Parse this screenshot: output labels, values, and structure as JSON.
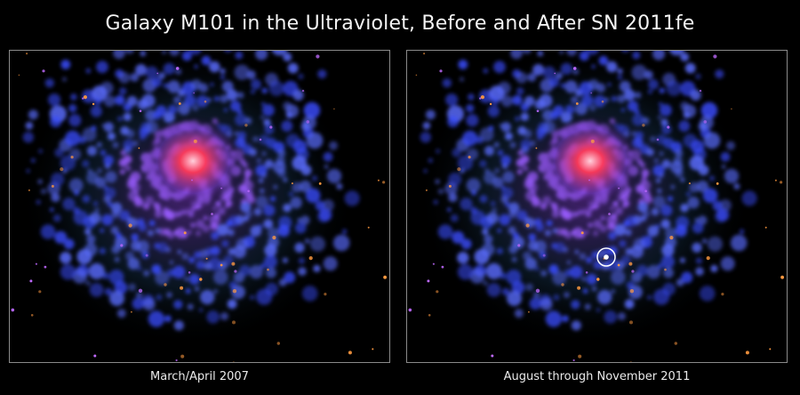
{
  "title": "Galaxy M101 in the Ultraviolet, Before and After SN 2011fe",
  "panels": [
    {
      "caption": "March/April 2007",
      "supernova_marked": false
    },
    {
      "caption": "August through November 2011",
      "supernova_marked": true
    }
  ],
  "colors": {
    "background": "#000000",
    "panel_border": "#8a8a8a",
    "arm_blue": "#3a4cff",
    "core_red": "#ff3a5a",
    "halo_violet": "#7a3cc8",
    "supernova_marker": "#ffffff"
  }
}
